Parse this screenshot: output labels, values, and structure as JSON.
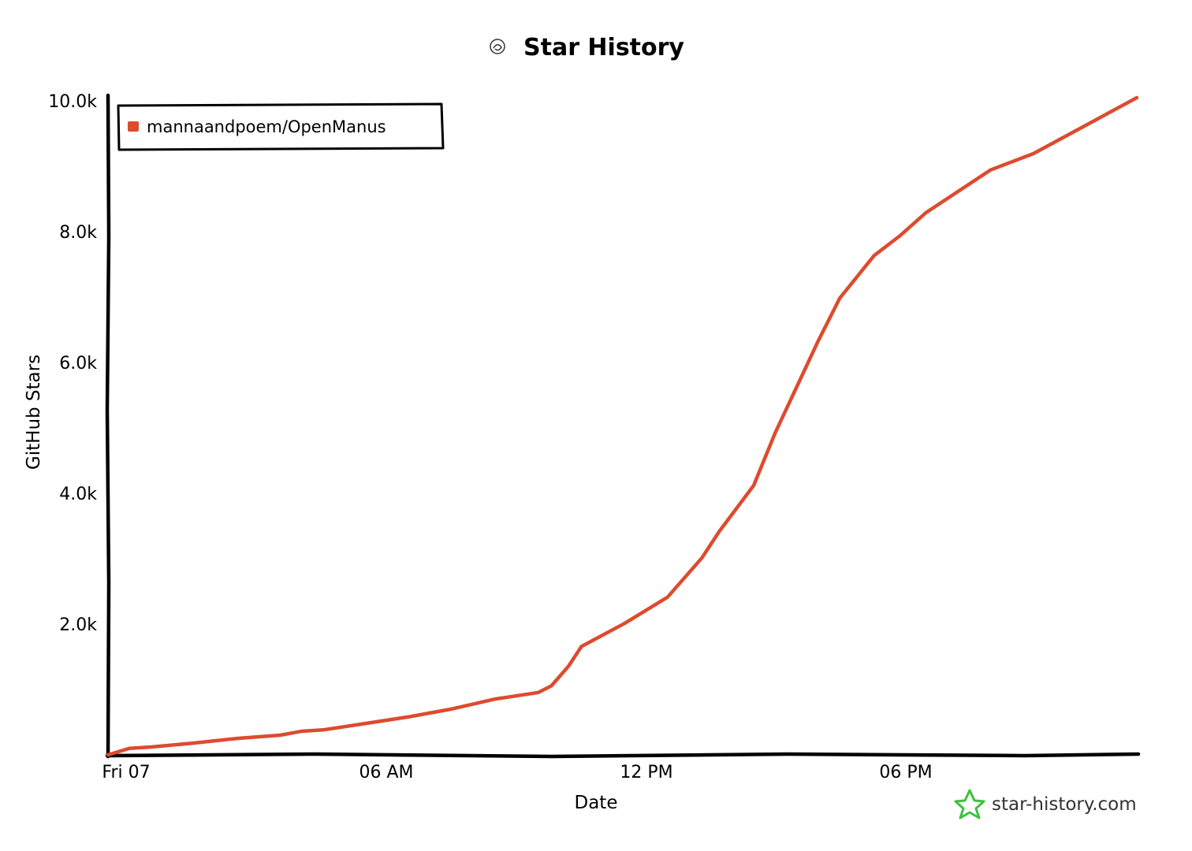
{
  "chart_data": {
    "type": "line",
    "title": "Star History",
    "xlabel": "Date",
    "ylabel": "GitHub Stars",
    "x_tick_labels": [
      "Fri 07",
      "06 AM",
      "12 PM",
      "06 PM"
    ],
    "x_tick_hours": [
      0,
      6,
      12,
      18
    ],
    "y_tick_labels": [
      "2.0k",
      "4.0k",
      "6.0k",
      "8.0k",
      "10.0k"
    ],
    "y_tick_values": [
      2000,
      4000,
      6000,
      8000,
      10000
    ],
    "xlim_hours": [
      0,
      23.9
    ],
    "ylim": [
      0,
      10000
    ],
    "grid": false,
    "legend_position": "top-left",
    "series": [
      {
        "name": "mannaandpoem/OpenManus",
        "color": "#dd4b2f",
        "x_hours": [
          0,
          0.5,
          1,
          2,
          3,
          4,
          4.5,
          5,
          6,
          7,
          8,
          9,
          10,
          10.3,
          10.7,
          11.0,
          12.0,
          13.0,
          13.8,
          14.2,
          15.0,
          15.5,
          16.0,
          16.5,
          17.0,
          17.8,
          18.4,
          19.0,
          20.5,
          21.5,
          23.9
        ],
        "values": [
          0,
          100,
          120,
          180,
          250,
          300,
          360,
          380,
          480,
          580,
          700,
          850,
          950,
          1050,
          1350,
          1650,
          2000,
          2400,
          3000,
          3400,
          4100,
          4900,
          5600,
          6300,
          6950,
          7600,
          7900,
          8250,
          8900,
          9150,
          10000
        ]
      }
    ],
    "watermark": "star-history.com"
  }
}
